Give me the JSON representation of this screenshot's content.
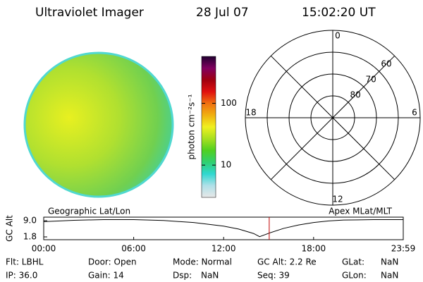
{
  "header": {
    "title": "Ultraviolet Imager",
    "date": "28 Jul 07",
    "time": "15:02:20 UT"
  },
  "colorbar": {
    "label": "photon cm⁻²s⁻¹",
    "scale": "log",
    "lim": [
      3,
      575
    ],
    "ticks": [
      10,
      100
    ],
    "colors": [
      "#e8e8e8",
      "#b0e0e8",
      "#30d8d0",
      "#30d070",
      "#50d020",
      "#a8e020",
      "#f0f020",
      "#f0b010",
      "#f07010",
      "#e01010",
      "#a00010",
      "#800060",
      "#200030"
    ]
  },
  "polar": {
    "rlim": [
      90,
      50
    ],
    "rings": [
      80,
      70,
      60,
      50
    ],
    "lat_ticks": [
      80,
      70,
      60
    ],
    "mlt_ticks": [
      12,
      6,
      0,
      18
    ]
  },
  "altitude_plot": {
    "left_label": "Geographic Lat/Lon",
    "right_label": "Apex MLat/MLT",
    "ylabel": "GC Alt",
    "ylim": [
      0.55,
      10.6
    ],
    "yticks": [
      {
        "value": 9,
        "label": "9.0"
      },
      1.8
    ],
    "xlim": [
      0,
      23.98
    ],
    "xticks": [
      {
        "value": 0,
        "label": "00:00"
      },
      {
        "value": 6,
        "label": "06:00"
      },
      {
        "value": 12,
        "label": "12:00"
      },
      {
        "value": 18,
        "label": "18:00"
      },
      {
        "value": 23.98,
        "label": "23:59"
      }
    ],
    "x": [
      0,
      2,
      4,
      6,
      8,
      10,
      12,
      13,
      14,
      14.4,
      15,
      16,
      17,
      18,
      19,
      20,
      22,
      23.98
    ],
    "values": [
      8.6,
      9.2,
      9.5,
      9.5,
      9.1,
      8.2,
      6.6,
      5.3,
      3.3,
      1.9,
      3.4,
      5.6,
      7.1,
      8.2,
      8.9,
      9.3,
      9.5,
      9.5
    ],
    "marker": 15.04,
    "marker_color": "#c00000"
  },
  "info": [
    [
      "Flt: LBHL",
      "Door: Open",
      "Mode: Normal",
      "GC Alt: 2.2 Re",
      "GLat:",
      "NaN"
    ],
    [
      "IP: 36.0",
      "Gain: 14",
      "Dsp:",
      "NaN",
      "Seq: 39",
      "GLon:",
      "NaN"
    ]
  ]
}
